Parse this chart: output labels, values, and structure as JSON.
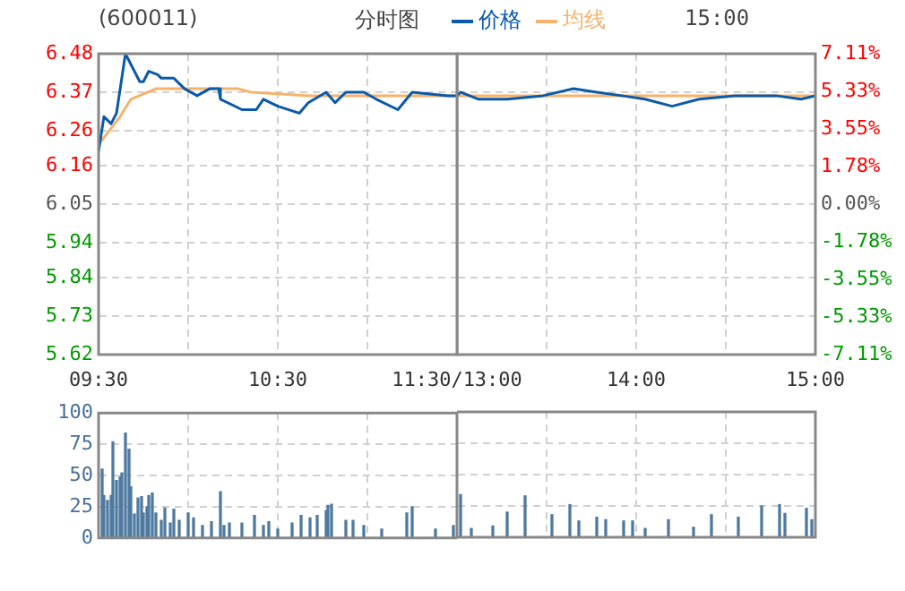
{
  "chart_data": [
    {
      "type": "line",
      "title": "(600011)",
      "subtitle": "分时图",
      "annotations": [
        "15:00"
      ],
      "legend": "top",
      "grid": true,
      "marker": "none",
      "line_style": "solid",
      "xlim": [
        9.5,
        11.5
      ],
      "xticks": [
        {
          "value": 9.5,
          "label": "09:30"
        },
        {
          "value": 10,
          "label": null
        },
        {
          "value": 10.5,
          "label": "10:30"
        },
        {
          "value": 11,
          "label": null
        },
        {
          "value": 11.5,
          "label": "11:30/13:00"
        }
      ],
      "ylim": [
        5.62,
        6.48
      ],
      "yticks": [
        5.62,
        5.73,
        5.84,
        5.94,
        6.05,
        6.16,
        6.26,
        6.37,
        6.48
      ],
      "series": [
        {
          "name": "价格",
          "color": "#0a5aaa",
          "x": [
            9.5,
            9.53,
            9.57,
            9.6,
            9.65,
            9.68,
            9.73,
            9.75,
            9.78,
            9.83,
            9.85,
            9.92,
            9.98,
            10.05,
            10.12,
            10.17,
            10.18,
            10.3,
            10.38,
            10.42,
            10.5,
            10.62,
            10.67,
            10.77,
            10.82,
            10.88,
            10.98,
            11.05,
            11.17,
            11.25,
            11.45,
            11.5
          ],
          "values": [
            6.2,
            6.3,
            6.28,
            6.31,
            6.48,
            6.45,
            6.4,
            6.4,
            6.43,
            6.42,
            6.41,
            6.41,
            6.38,
            6.36,
            6.38,
            6.38,
            6.35,
            6.32,
            6.32,
            6.35,
            6.33,
            6.31,
            6.34,
            6.37,
            6.34,
            6.37,
            6.37,
            6.35,
            6.32,
            6.37,
            6.36,
            6.36
          ]
        },
        {
          "name": "均线",
          "color": "#f5b26b",
          "x": [
            9.5,
            9.62,
            9.68,
            9.82,
            9.92,
            10.28,
            10.35,
            10.68,
            11.5
          ],
          "values": [
            6.22,
            6.3,
            6.35,
            6.38,
            6.38,
            6.38,
            6.37,
            6.36,
            6.36
          ]
        }
      ]
    },
    {
      "type": "line",
      "grid": true,
      "marker": "none",
      "line_style": "solid",
      "tick_labels": "x",
      "xlim": [
        13,
        15
      ],
      "xticks": [
        {
          "value": 13.5,
          "label": null
        },
        {
          "value": 14,
          "label": "14:00"
        },
        {
          "value": 14.5,
          "label": null
        },
        {
          "value": 15,
          "label": "15:00"
        }
      ],
      "ylim": [
        5.62,
        6.48
      ],
      "yticks": [
        5.62,
        5.73,
        5.84,
        5.94,
        6.05,
        6.16,
        6.26,
        6.37,
        6.48
      ],
      "y2lim": [
        -7.11,
        7.11
      ],
      "y2ticks": [
        {
          "value": -7.11,
          "label": "-7.11%"
        },
        {
          "value": -5.33,
          "label": "-5.33%"
        },
        {
          "value": -3.55,
          "label": "-3.55%"
        },
        {
          "value": -1.78,
          "label": "-1.78%"
        },
        {
          "value": 0,
          "label": "0.00%"
        },
        {
          "value": 1.78,
          "label": "1.78%"
        },
        {
          "value": 3.55,
          "label": "3.55%"
        },
        {
          "value": 5.33,
          "label": "5.33%"
        },
        {
          "value": 7.11,
          "label": "7.11%"
        }
      ],
      "series": [
        {
          "color": "#0a5aaa",
          "x": [
            13,
            13.02,
            13.12,
            13.28,
            13.48,
            13.65,
            13.78,
            13.92,
            14.05,
            14.2,
            14.35,
            14.55,
            14.78,
            14.92,
            15
          ],
          "values": [
            6.36,
            6.37,
            6.35,
            6.35,
            6.36,
            6.38,
            6.37,
            6.36,
            6.35,
            6.33,
            6.35,
            6.36,
            6.36,
            6.35,
            6.36
          ]
        },
        {
          "color": "#f5b26b",
          "x": [
            13,
            14.28,
            15
          ],
          "values": [
            6.36,
            6.36,
            6.36
          ]
        }
      ]
    },
    {
      "type": "bar",
      "grid": true,
      "tick_labels": "y",
      "color": "#4f7aa0",
      "xlim": [
        9.5,
        11.5
      ],
      "xticks": [
        9.5,
        10,
        10.5,
        11,
        11.5
      ],
      "ylim": [
        0,
        100
      ],
      "yticks": [
        0,
        25,
        50,
        75,
        100
      ],
      "x": [
        9.52,
        9.53,
        9.55,
        9.57,
        9.58,
        9.6,
        9.62,
        9.63,
        9.65,
        9.67,
        9.68,
        9.7,
        9.72,
        9.74,
        9.75,
        9.77,
        9.78,
        9.8,
        9.82,
        9.85,
        9.87,
        9.9,
        9.92,
        9.95,
        10,
        10.03,
        10.08,
        10.13,
        10.18,
        10.2,
        10.23,
        10.3,
        10.37,
        10.42,
        10.45,
        10.5,
        10.58,
        10.63,
        10.68,
        10.72,
        10.77,
        10.78,
        10.8,
        10.88,
        10.92,
        10.98,
        11.08,
        11.22,
        11.25,
        11.38,
        11.48
      ],
      "values": [
        55,
        34,
        30,
        34,
        77,
        46,
        49,
        52,
        84,
        71,
        41,
        19,
        32,
        33,
        20,
        25,
        34,
        36,
        20,
        14,
        24,
        12,
        23,
        14,
        20,
        16,
        10,
        13,
        37,
        10,
        12,
        12,
        18,
        10,
        13,
        7,
        12,
        18,
        16,
        18,
        22,
        26,
        27,
        14,
        14,
        10,
        7,
        20,
        25,
        7,
        10
      ]
    },
    {
      "type": "bar",
      "grid": true,
      "tick_labels": false,
      "color": "#4f7aa0",
      "xlim": [
        13,
        15
      ],
      "xticks": [
        13.5,
        14,
        14.5,
        15
      ],
      "ylim": [
        0,
        100
      ],
      "yticks": [
        0,
        25,
        50,
        75,
        100
      ],
      "x": [
        13.02,
        13.08,
        13.2,
        13.28,
        13.38,
        13.53,
        13.63,
        13.68,
        13.78,
        13.83,
        13.93,
        13.98,
        14.05,
        14.18,
        14.32,
        14.42,
        14.57,
        14.7,
        14.8,
        14.83,
        14.95,
        14.98
      ],
      "values": [
        34,
        7,
        9,
        20,
        33,
        18,
        26,
        13,
        16,
        14,
        13,
        13,
        7,
        14,
        8,
        18,
        16,
        25,
        26,
        19,
        23,
        14
      ]
    }
  ]
}
